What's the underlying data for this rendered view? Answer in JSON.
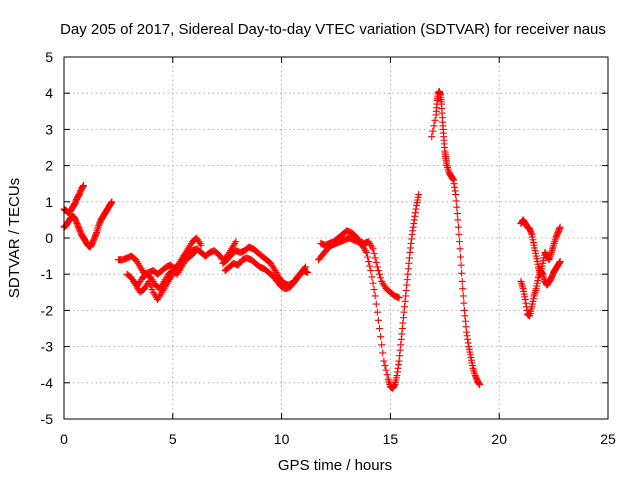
{
  "chart_data": {
    "type": "scatter",
    "title": "Day 205 of 2017, Sidereal Day-to-day VTEC variation (SDTVAR) for receiver naus",
    "xlabel": "GPS time / hours",
    "ylabel": "SDTVAR / TECUs",
    "xlim": [
      0,
      25
    ],
    "ylim": [
      -5,
      5
    ],
    "xticks": [
      0,
      5,
      10,
      15,
      20,
      25
    ],
    "yticks": [
      -5,
      -4,
      -3,
      -2,
      -1,
      0,
      1,
      2,
      3,
      4,
      5
    ],
    "grid": true,
    "legend": "none",
    "marker": "plus",
    "color": "#ff0000",
    "series": [
      {
        "x": [
          0.0,
          0.1,
          0.2,
          0.3,
          0.4,
          0.5,
          0.6,
          0.7,
          0.8,
          0.9
        ],
        "y": [
          0.8,
          0.75,
          0.7,
          0.75,
          0.85,
          0.95,
          1.1,
          1.2,
          1.35,
          1.45
        ]
      },
      {
        "x": [
          0.0,
          0.1,
          0.2,
          0.3,
          0.4,
          0.5,
          0.6,
          0.7,
          0.8,
          0.9,
          1.0,
          1.1,
          1.2,
          1.3,
          1.4,
          1.5,
          1.6,
          1.7,
          1.8,
          1.9,
          2.0,
          2.1,
          2.2
        ],
        "y": [
          0.3,
          0.35,
          0.45,
          0.55,
          0.6,
          0.55,
          0.4,
          0.25,
          0.1,
          0.0,
          -0.1,
          -0.2,
          -0.25,
          -0.15,
          0.0,
          0.15,
          0.35,
          0.5,
          0.6,
          0.7,
          0.8,
          0.9,
          1.0
        ]
      },
      {
        "x": [
          2.5,
          2.7,
          2.9,
          3.1,
          3.3,
          3.5,
          3.7,
          3.9,
          4.1,
          4.3,
          4.5,
          4.7,
          4.9,
          5.1,
          5.3,
          5.5,
          5.7,
          5.9,
          6.1,
          6.3,
          6.5,
          6.7,
          6.9,
          7.1,
          7.3,
          7.5,
          7.7,
          7.9
        ],
        "y": [
          -0.6,
          -0.6,
          -0.55,
          -0.5,
          -0.6,
          -0.8,
          -1.0,
          -0.95,
          -0.9,
          -1.0,
          -0.9,
          -0.8,
          -0.75,
          -0.85,
          -0.7,
          -0.5,
          -0.4,
          -0.35,
          -0.3,
          -0.4,
          -0.5,
          -0.4,
          -0.35,
          -0.45,
          -0.6,
          -0.5,
          -0.3,
          -0.1
        ]
      },
      {
        "x": [
          2.9,
          3.1,
          3.3,
          3.5,
          3.7,
          3.9,
          4.1,
          4.3,
          4.5,
          4.7,
          4.9,
          5.1,
          5.3,
          5.5,
          5.7,
          5.9,
          6.1,
          6.3
        ],
        "y": [
          -1.0,
          -1.1,
          -1.3,
          -1.5,
          -1.4,
          -1.2,
          -1.5,
          -1.7,
          -1.5,
          -1.3,
          -1.1,
          -0.9,
          -0.7,
          -0.5,
          -0.3,
          -0.1,
          0.0,
          -0.2
        ]
      },
      {
        "x": [
          3.2,
          3.4,
          3.6,
          3.8,
          4.0,
          4.2,
          4.4,
          4.6,
          4.8,
          5.0,
          5.2,
          5.4,
          5.6,
          5.8,
          6.0
        ],
        "y": [
          -1.2,
          -1.3,
          -1.1,
          -1.0,
          -1.1,
          -1.3,
          -1.4,
          -1.2,
          -1.0,
          -0.9,
          -1.0,
          -0.8,
          -0.6,
          -0.5,
          -0.4
        ]
      },
      {
        "x": [
          7.3,
          7.5,
          7.7,
          7.9,
          8.1,
          8.3,
          8.5,
          8.7,
          8.9,
          9.1,
          9.3,
          9.5,
          9.7,
          9.9,
          10.1,
          10.3,
          10.5,
          10.7,
          10.9,
          11.1
        ],
        "y": [
          -0.7,
          -0.6,
          -0.45,
          -0.35,
          -0.4,
          -0.35,
          -0.25,
          -0.3,
          -0.4,
          -0.5,
          -0.6,
          -0.7,
          -0.9,
          -1.1,
          -1.25,
          -1.3,
          -1.25,
          -1.1,
          -0.95,
          -0.8
        ]
      },
      {
        "x": [
          7.4,
          7.6,
          7.8,
          8.0,
          8.2,
          8.4,
          8.6,
          8.8,
          9.0,
          9.2,
          9.4,
          9.6,
          9.8,
          10.0,
          10.2,
          10.4,
          10.6,
          10.8,
          11.0,
          11.2
        ],
        "y": [
          -0.9,
          -0.8,
          -0.7,
          -0.75,
          -0.6,
          -0.55,
          -0.6,
          -0.7,
          -0.8,
          -0.85,
          -0.95,
          -1.05,
          -1.2,
          -1.35,
          -1.4,
          -1.35,
          -1.2,
          -1.05,
          -0.9,
          -0.95
        ]
      },
      {
        "x": [
          11.7,
          11.9,
          12.1,
          12.3,
          12.5,
          12.7,
          12.9,
          13.1,
          13.3,
          13.5,
          13.7,
          13.9,
          14.1,
          14.3,
          14.5,
          14.7,
          14.9,
          15.0,
          15.1,
          15.2,
          15.3,
          15.4,
          15.5,
          15.6,
          15.7,
          15.8,
          15.9,
          16.0,
          16.1,
          16.2,
          16.3
        ],
        "y": [
          -0.6,
          -0.45,
          -0.3,
          -0.2,
          -0.15,
          -0.1,
          -0.05,
          0.0,
          -0.05,
          -0.1,
          -0.2,
          -0.4,
          -0.9,
          -1.6,
          -2.5,
          -3.4,
          -3.9,
          -4.1,
          -4.15,
          -4.05,
          -3.8,
          -3.4,
          -2.8,
          -2.2,
          -1.6,
          -1.0,
          -0.4,
          0.1,
          0.5,
          0.9,
          1.2
        ]
      },
      {
        "x": [
          11.8,
          12.0,
          12.2,
          12.4,
          12.6,
          12.8,
          13.0,
          13.2,
          13.4,
          13.6,
          13.8,
          14.0,
          14.2,
          14.4,
          14.6,
          14.8,
          15.0,
          15.2,
          15.4
        ],
        "y": [
          -0.15,
          -0.2,
          -0.15,
          -0.1,
          0.0,
          0.1,
          0.2,
          0.15,
          0.05,
          -0.1,
          -0.15,
          -0.1,
          -0.3,
          -0.8,
          -1.2,
          -1.4,
          -1.5,
          -1.6,
          -1.65
        ]
      },
      {
        "x": [
          16.9,
          17.1,
          17.15,
          17.2,
          17.25,
          17.3,
          17.35,
          17.4,
          17.45,
          17.5,
          17.55,
          17.6,
          17.7,
          17.8,
          17.9,
          18.0,
          18.1,
          18.2,
          18.3,
          18.4,
          18.5,
          18.6,
          18.7,
          18.8,
          18.9,
          19.0,
          19.1
        ],
        "y": [
          2.8,
          3.4,
          3.8,
          4.0,
          4.05,
          3.95,
          3.7,
          3.2,
          2.8,
          2.4,
          2.2,
          2.0,
          1.8,
          1.7,
          1.6,
          1.2,
          0.5,
          -0.3,
          -1.2,
          -2.0,
          -2.6,
          -3.0,
          -3.3,
          -3.6,
          -3.8,
          -3.95,
          -4.05
        ]
      },
      {
        "x": [
          21.0,
          21.1,
          21.2,
          21.3,
          21.4,
          21.5,
          21.6,
          21.7,
          21.8,
          21.9,
          22.0,
          22.1,
          22.2,
          22.3,
          22.4,
          22.5,
          22.6,
          22.7,
          22.8
        ],
        "y": [
          -1.2,
          -1.4,
          -1.7,
          -2.1,
          -2.15,
          -1.9,
          -1.6,
          -1.4,
          -1.1,
          -0.9,
          -1.0,
          -1.2,
          -1.3,
          -1.2,
          -1.1,
          -0.95,
          -0.85,
          -0.75,
          -0.65
        ]
      },
      {
        "x": [
          21.0,
          21.1,
          21.2,
          21.3,
          21.4,
          21.5,
          21.6,
          21.7,
          21.8,
          21.9,
          22.0,
          22.1,
          22.2,
          22.3,
          22.4,
          22.5,
          22.6,
          22.7,
          22.8
        ],
        "y": [
          0.4,
          0.5,
          0.4,
          0.3,
          0.25,
          0.1,
          -0.2,
          -0.5,
          -0.8,
          -1.0,
          -0.7,
          -0.4,
          -0.5,
          -0.6,
          -0.4,
          -0.2,
          0.0,
          0.15,
          0.3
        ]
      }
    ]
  }
}
